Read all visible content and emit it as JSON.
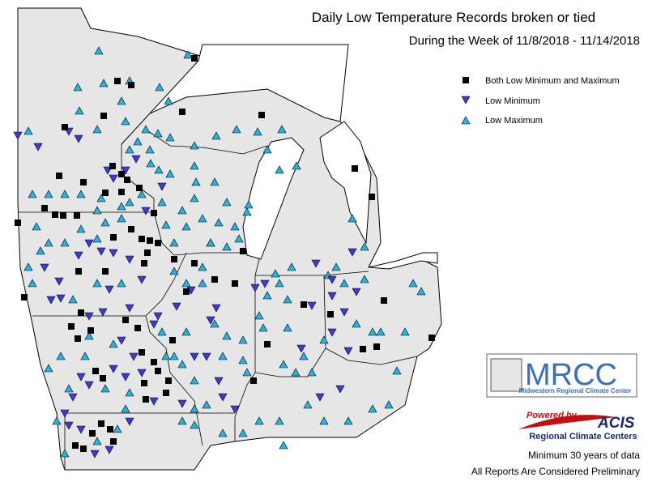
{
  "header": {
    "title": "Daily Low Temperature Records broken or tied",
    "subtitle": "During the Week of 11/8/2018 - 11/14/2018"
  },
  "legend": {
    "items": [
      "Both Low Minimum and Maximum",
      "Low Minimum",
      "Low Maximum"
    ]
  },
  "logo": {
    "name": "MRCC",
    "full": "Midwestern Regional Climate Center"
  },
  "acis": {
    "powered": "Powered by",
    "name": "ACIS",
    "sub": "Regional Climate Centers"
  },
  "footer": {
    "notes": [
      "Minimum 30 years of data",
      "All Reports Are Considered Preliminary"
    ]
  }
}
